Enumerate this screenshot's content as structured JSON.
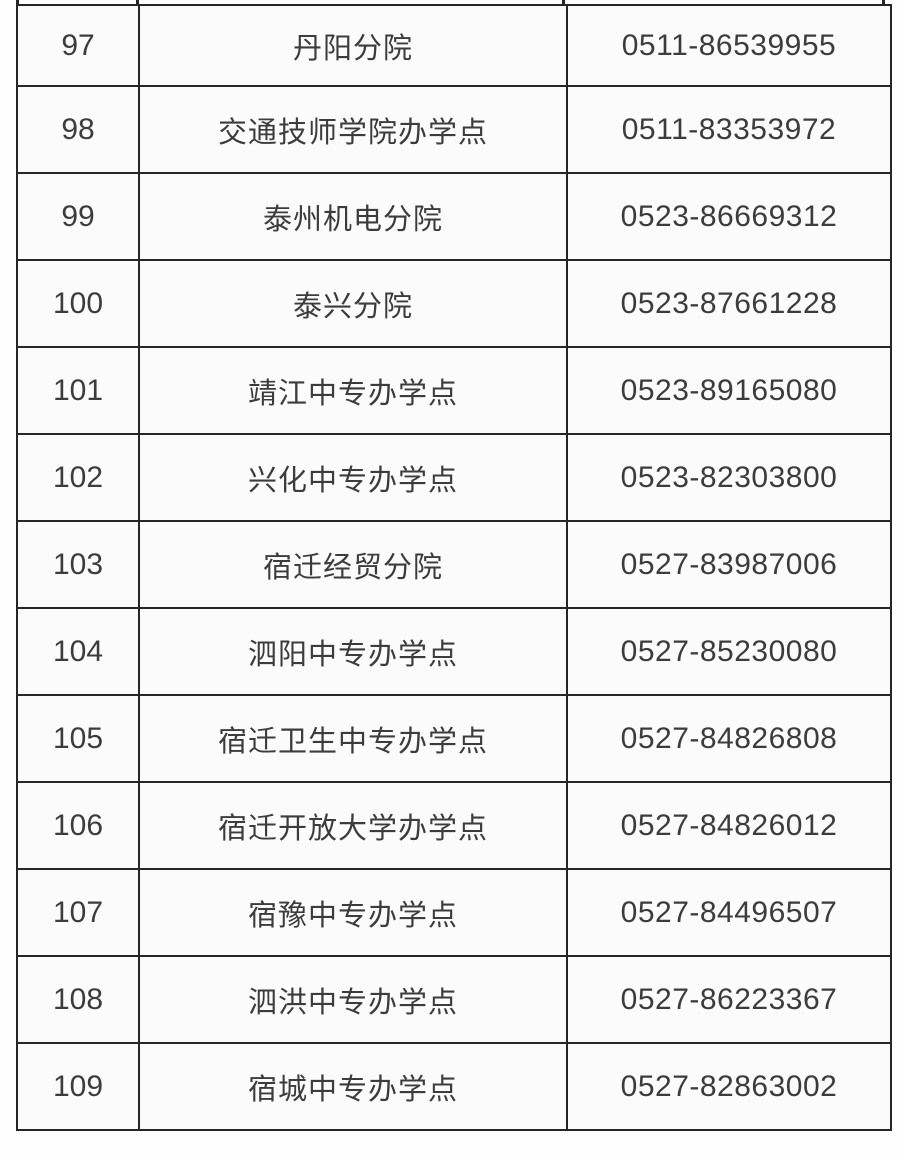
{
  "colors": {
    "border": "#262626",
    "text": "#3c3c3c",
    "cell_background": "#fbfbfb"
  },
  "table": {
    "rows": [
      {
        "no": "97",
        "name": "丹阳分院",
        "phone": "0511-86539955"
      },
      {
        "no": "98",
        "name": "交通技师学院办学点",
        "phone": "0511-83353972"
      },
      {
        "no": "99",
        "name": "泰州机电分院",
        "phone": "0523-86669312"
      },
      {
        "no": "100",
        "name": "泰兴分院",
        "phone": "0523-87661228"
      },
      {
        "no": "101",
        "name": "靖江中专办学点",
        "phone": "0523-89165080"
      },
      {
        "no": "102",
        "name": "兴化中专办学点",
        "phone": "0523-82303800"
      },
      {
        "no": "103",
        "name": "宿迁经贸分院",
        "phone": "0527-83987006"
      },
      {
        "no": "104",
        "name": "泗阳中专办学点",
        "phone": "0527-85230080"
      },
      {
        "no": "105",
        "name": "宿迁卫生中专办学点",
        "phone": "0527-84826808"
      },
      {
        "no": "106",
        "name": "宿迁开放大学办学点",
        "phone": "0527-84826012"
      },
      {
        "no": "107",
        "name": "宿豫中专办学点",
        "phone": "0527-84496507"
      },
      {
        "no": "108",
        "name": "泗洪中专办学点",
        "phone": "0527-86223367"
      },
      {
        "no": "109",
        "name": "宿城中专办学点",
        "phone": "0527-82863002"
      }
    ]
  }
}
